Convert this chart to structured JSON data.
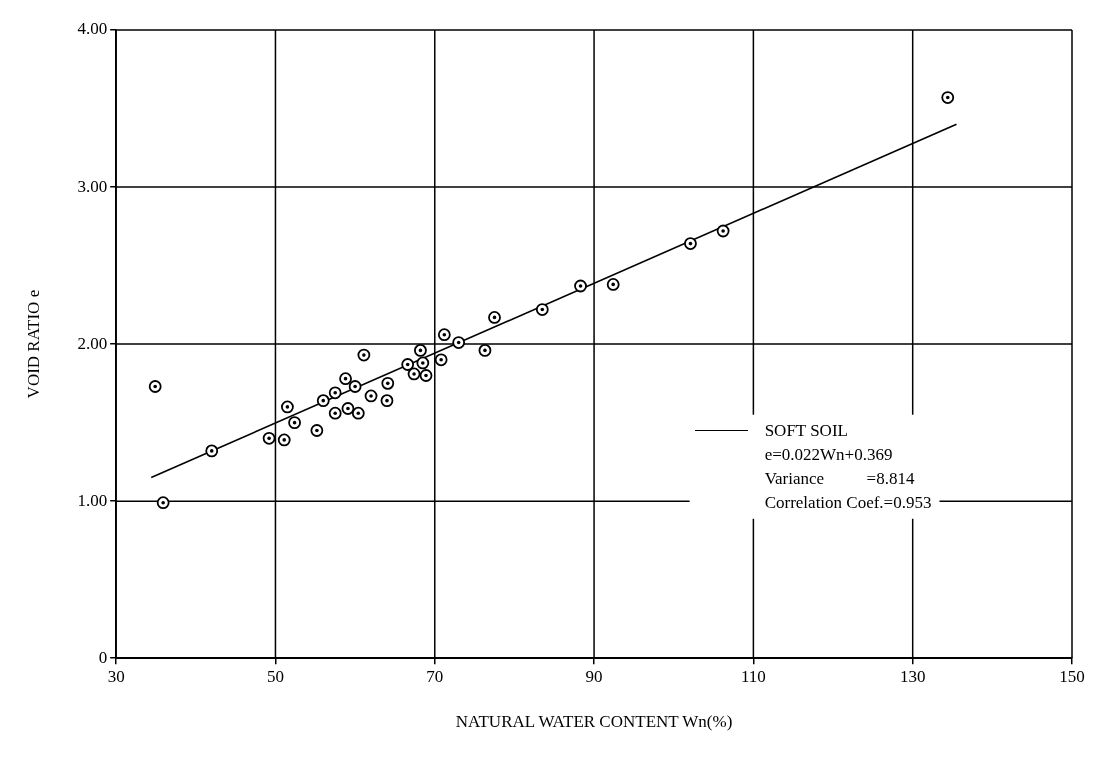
{
  "chart_data": {
    "type": "scatter",
    "xlabel": "NATURAL WATER CONTENT Wn(%)",
    "ylabel": "VOID RATIO e",
    "xlim": [
      30,
      150
    ],
    "xticks": [
      30,
      50,
      70,
      90,
      110,
      130,
      150
    ],
    "ylim": [
      0,
      4
    ],
    "yticks": [
      0,
      {
        "value": 1,
        "label": "1.00"
      },
      {
        "value": 2,
        "label": "2.00"
      },
      {
        "value": 3,
        "label": "3.00"
      },
      {
        "value": 4,
        "label": "4.00"
      }
    ],
    "grid": true,
    "legend": "right",
    "series": [
      {
        "marker": "circle",
        "color": "#000000",
        "x": [
          34.9,
          35.9,
          42.0,
          49.2,
          51.1,
          51.5,
          52.4,
          55.2,
          56.0,
          57.5,
          57.5,
          58.8,
          59.1,
          60.0,
          60.4,
          61.1,
          62.0,
          64.0,
          64.1,
          66.6,
          67.4,
          68.2,
          68.5,
          68.9,
          70.8,
          71.2,
          73.0,
          76.3,
          77.5,
          83.5,
          88.3,
          92.4,
          102.1,
          106.2,
          134.4
        ],
        "values": [
          1.73,
          0.99,
          1.32,
          1.4,
          1.39,
          1.6,
          1.5,
          1.45,
          1.64,
          1.69,
          1.56,
          1.78,
          1.59,
          1.73,
          1.56,
          1.93,
          1.67,
          1.64,
          1.75,
          1.87,
          1.81,
          1.96,
          1.88,
          1.8,
          1.9,
          2.06,
          2.01,
          1.96,
          2.17,
          2.22,
          2.37,
          2.38,
          2.64,
          2.72,
          3.57
        ]
      },
      {
        "type": "line",
        "marker": "none",
        "name": "SOFT SOIL",
        "color": "#000000",
        "x": [
          34.4,
          135.5
        ],
        "values": [
          1.15,
          3.4
        ]
      }
    ],
    "annotations": [
      "e=0.022Wn+0.369",
      "Variance          =8.814",
      "Correlation Coef.=0.953"
    ]
  }
}
